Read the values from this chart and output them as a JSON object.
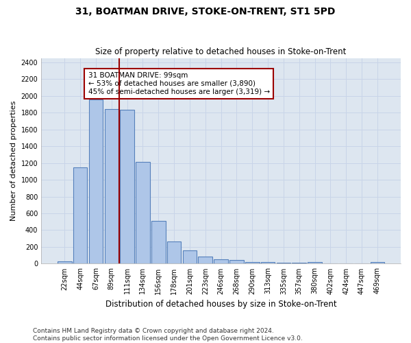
{
  "title": "31, BOATMAN DRIVE, STOKE-ON-TRENT, ST1 5PD",
  "subtitle": "Size of property relative to detached houses in Stoke-on-Trent",
  "xlabel": "Distribution of detached houses by size in Stoke-on-Trent",
  "ylabel": "Number of detached properties",
  "bar_labels": [
    "22sqm",
    "44sqm",
    "67sqm",
    "89sqm",
    "111sqm",
    "134sqm",
    "156sqm",
    "178sqm",
    "201sqm",
    "223sqm",
    "246sqm",
    "268sqm",
    "290sqm",
    "313sqm",
    "335sqm",
    "357sqm",
    "380sqm",
    "402sqm",
    "424sqm",
    "447sqm",
    "469sqm"
  ],
  "bar_values": [
    28,
    1150,
    1955,
    1840,
    1830,
    1215,
    510,
    265,
    158,
    82,
    50,
    45,
    22,
    20,
    8,
    8,
    18,
    5,
    5,
    5,
    18
  ],
  "bar_color": "#aec6e8",
  "bar_edgecolor": "#5580bb",
  "bar_linewidth": 0.8,
  "vline_x": 3.5,
  "vline_color": "#9b0000",
  "vline_linewidth": 1.5,
  "annotation_text": "31 BOATMAN DRIVE: 99sqm\n← 53% of detached houses are smaller (3,890)\n45% of semi-detached houses are larger (3,319) →",
  "annotation_box_edgecolor": "#9b0000",
  "annotation_fontsize": 7.5,
  "ylim": [
    0,
    2450
  ],
  "yticks": [
    0,
    200,
    400,
    600,
    800,
    1000,
    1200,
    1400,
    1600,
    1800,
    2000,
    2200,
    2400
  ],
  "grid_color": "#c8d4e8",
  "background_color": "#dde6f0",
  "footer_text": "Contains HM Land Registry data © Crown copyright and database right 2024.\nContains public sector information licensed under the Open Government Licence v3.0.",
  "title_fontsize": 10,
  "subtitle_fontsize": 8.5,
  "xlabel_fontsize": 8.5,
  "ylabel_fontsize": 8,
  "tick_fontsize": 7,
  "footer_fontsize": 6.5
}
